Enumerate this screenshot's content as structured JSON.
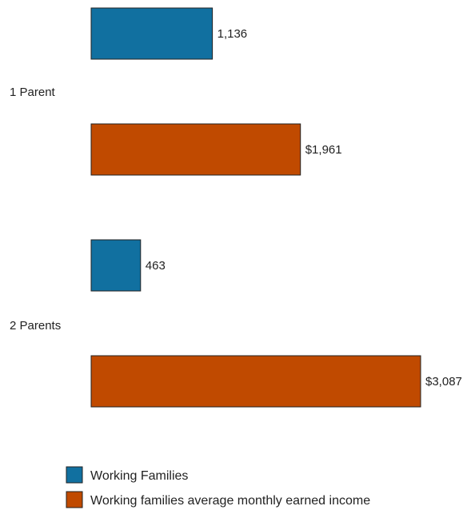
{
  "chart_data": {
    "type": "bar",
    "orientation": "horizontal",
    "categories": [
      "1 Parent",
      "2 Parents"
    ],
    "series": [
      {
        "name": "Working Families",
        "values": [
          1136,
          463
        ],
        "labels": [
          "1,136",
          "463"
        ],
        "color": "#1170a0"
      },
      {
        "name": "Working families average monthly earned income",
        "values": [
          1961,
          3087
        ],
        "labels": [
          "$1,961",
          "$3,087"
        ],
        "color": "#c04a00"
      }
    ],
    "title": "",
    "xlabel": "",
    "ylabel": "",
    "axes_visible": false,
    "grid": false,
    "legend_position": "bottom-left"
  }
}
